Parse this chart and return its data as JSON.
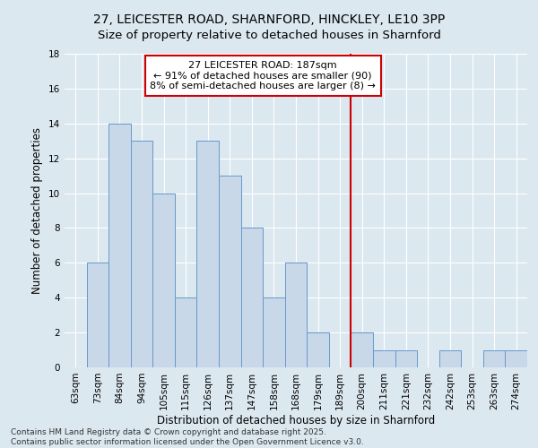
{
  "title_line1": "27, LEICESTER ROAD, SHARNFORD, HINCKLEY, LE10 3PP",
  "title_line2": "Size of property relative to detached houses in Sharnford",
  "xlabel": "Distribution of detached houses by size in Sharnford",
  "ylabel": "Number of detached properties",
  "categories": [
    "63sqm",
    "73sqm",
    "84sqm",
    "94sqm",
    "105sqm",
    "115sqm",
    "126sqm",
    "137sqm",
    "147sqm",
    "158sqm",
    "168sqm",
    "179sqm",
    "189sqm",
    "200sqm",
    "211sqm",
    "221sqm",
    "232sqm",
    "242sqm",
    "253sqm",
    "263sqm",
    "274sqm"
  ],
  "values": [
    0,
    6,
    14,
    13,
    10,
    4,
    13,
    11,
    8,
    4,
    6,
    2,
    0,
    2,
    1,
    1,
    0,
    1,
    0,
    1,
    1
  ],
  "bar_color": "#c8d8e8",
  "bar_edge_color": "#6699cc",
  "vline_index": 12.5,
  "vline_color": "#cc0000",
  "annotation_text": "27 LEICESTER ROAD: 187sqm\n← 91% of detached houses are smaller (90)\n8% of semi-detached houses are larger (8) →",
  "annotation_box_color": "#ffffff",
  "annotation_box_edge_color": "#cc0000",
  "ylim": [
    0,
    18
  ],
  "yticks": [
    0,
    2,
    4,
    6,
    8,
    10,
    12,
    14,
    16,
    18
  ],
  "background_color": "#dce8f0",
  "grid_color": "#ffffff",
  "fig_background": "#dce8f0",
  "footer_text": "Contains HM Land Registry data © Crown copyright and database right 2025.\nContains public sector information licensed under the Open Government Licence v3.0.",
  "title_fontsize": 10,
  "axis_label_fontsize": 8.5,
  "tick_fontsize": 7.5,
  "annotation_fontsize": 8,
  "footer_fontsize": 6.5
}
